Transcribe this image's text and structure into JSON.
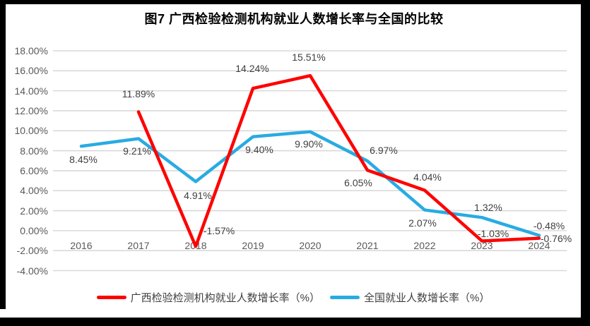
{
  "title": "图7 广西检验检测机构就业人数增长率与全国的比较",
  "chart_data": {
    "type": "line",
    "categories": [
      "2016",
      "2017",
      "2018",
      "2019",
      "2020",
      "2021",
      "2022",
      "2023",
      "2024"
    ],
    "series": [
      {
        "name": "广西检验检测机构就业人数增长率（%）",
        "color": "#FF0000",
        "values": [
          null,
          11.89,
          -1.57,
          14.24,
          15.51,
          6.05,
          4.04,
          -1.03,
          -0.76
        ],
        "labels": [
          null,
          "11.89%",
          "-1.57%",
          "14.24%",
          "15.51%",
          "6.05%",
          "4.04%",
          "-1.03%",
          "-0.76%"
        ]
      },
      {
        "name": "全国就业人数增长率（%）",
        "color": "#29ABE2",
        "values": [
          8.45,
          9.21,
          4.91,
          9.4,
          9.9,
          6.97,
          2.07,
          1.32,
          -0.48
        ],
        "labels": [
          "8.45%",
          "9.21%",
          "4.91%",
          "9.40%",
          "9.90%",
          "6.97%",
          "2.07%",
          "1.32%",
          "-0.48%"
        ]
      }
    ],
    "ylim": [
      -4,
      18
    ],
    "ytick_labels": [
      "18.00%",
      "16.00%",
      "14.00%",
      "12.00%",
      "10.00%",
      "8.00%",
      "6.00%",
      "4.00%",
      "2.00%",
      "0.00%",
      "-2.00%",
      "-4.00%"
    ],
    "grid": true,
    "legend_position": "bottom"
  },
  "colors": {
    "gridline": "#D9D9D9",
    "axis_text": "#595959",
    "data_label_text": "#3F3F3F",
    "frame": "#000000",
    "background": "#FFFFFF"
  }
}
